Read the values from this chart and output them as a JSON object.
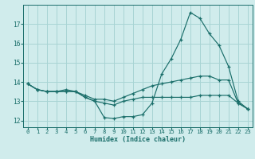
{
  "xlabel": "Humidex (Indice chaleur)",
  "background_color": "#d0ecec",
  "grid_color": "#a8d4d4",
  "line_color": "#1a6e6a",
  "hours": [
    0,
    1,
    2,
    3,
    4,
    5,
    6,
    7,
    8,
    9,
    10,
    11,
    12,
    13,
    14,
    15,
    16,
    17,
    18,
    19,
    20,
    21,
    22,
    23
  ],
  "line1_high": [
    13.9,
    13.6,
    13.5,
    13.5,
    13.6,
    13.5,
    13.2,
    13.0,
    12.15,
    12.1,
    12.2,
    12.2,
    12.3,
    12.9,
    14.4,
    15.2,
    16.2,
    17.6,
    17.3,
    16.5,
    15.9,
    14.8,
    13.0,
    12.6
  ],
  "line2_mid": [
    13.9,
    13.6,
    13.5,
    13.5,
    13.5,
    13.5,
    13.3,
    13.1,
    13.1,
    13.0,
    13.2,
    13.4,
    13.6,
    13.8,
    13.9,
    14.0,
    14.1,
    14.2,
    14.3,
    14.3,
    14.1,
    14.1,
    12.9,
    12.6
  ],
  "line3_low": [
    13.9,
    13.6,
    13.5,
    13.5,
    13.5,
    13.5,
    13.2,
    13.0,
    12.9,
    12.8,
    13.0,
    13.1,
    13.2,
    13.2,
    13.2,
    13.2,
    13.2,
    13.2,
    13.3,
    13.3,
    13.3,
    13.3,
    12.9,
    12.6
  ],
  "ylim": [
    11.65,
    18.0
  ],
  "yticks": [
    12,
    13,
    14,
    15,
    16,
    17
  ],
  "xticks": [
    0,
    1,
    2,
    3,
    4,
    5,
    6,
    7,
    8,
    9,
    10,
    11,
    12,
    13,
    14,
    15,
    16,
    17,
    18,
    19,
    20,
    21,
    22,
    23
  ],
  "xlabel_fontsize": 6.0,
  "tick_fontsize": 5.2
}
